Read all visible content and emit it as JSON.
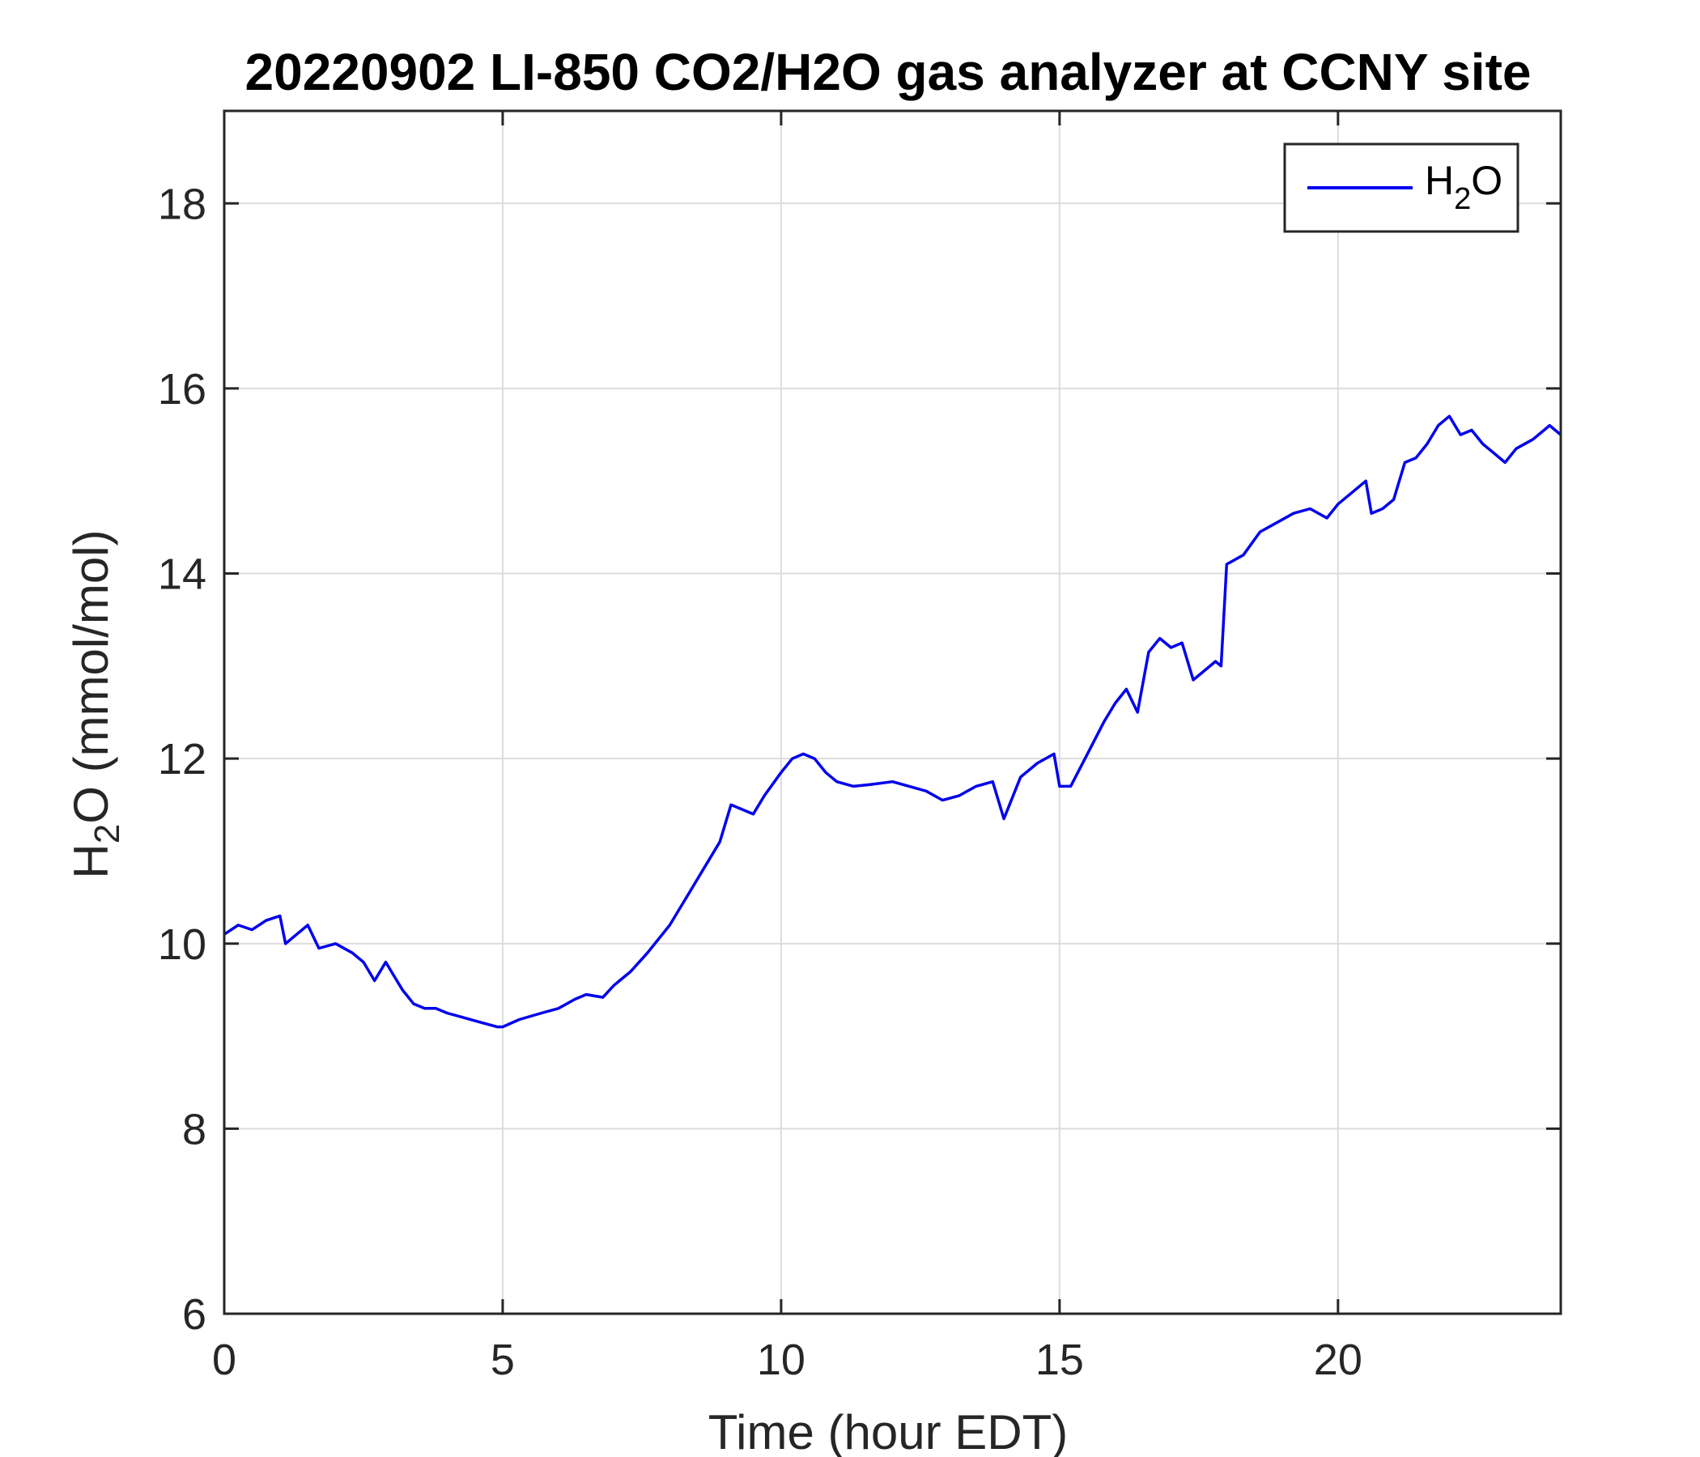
{
  "chart_data": {
    "type": "line",
    "title": "20220902 LI-850 CO2/H2O gas analyzer at CCNY site",
    "xlabel": "Time (hour EDT)",
    "ylabel": {
      "main": "H",
      "sub": "2",
      "rest": "O (mmol/mol)"
    },
    "xlim": [
      0,
      24
    ],
    "ylim": [
      6,
      19
    ],
    "xticks": [
      0,
      5,
      10,
      15,
      20
    ],
    "xtick_labels": [
      "0",
      "5",
      "10",
      "15",
      "20"
    ],
    "yticks": [
      6,
      8,
      10,
      12,
      14,
      16,
      18
    ],
    "ytick_labels": [
      "6",
      "8",
      "10",
      "12",
      "14",
      "16",
      "18"
    ],
    "grid": true,
    "legend_position": "top-right",
    "series": [
      {
        "name": {
          "main": "H",
          "sub": "2",
          "rest": "O"
        },
        "color": "#0000ee",
        "x": [
          0,
          0.25,
          0.5,
          0.75,
          1.0,
          1.1,
          1.5,
          1.7,
          2.0,
          2.3,
          2.5,
          2.7,
          2.9,
          3.0,
          3.2,
          3.4,
          3.6,
          3.8,
          4.0,
          4.3,
          4.6,
          4.9,
          5.0,
          5.3,
          5.7,
          6.0,
          6.3,
          6.5,
          6.8,
          7.0,
          7.3,
          7.6,
          8.0,
          8.3,
          8.6,
          8.9,
          9.1,
          9.3,
          9.5,
          9.7,
          10.0,
          10.2,
          10.4,
          10.6,
          10.8,
          11.0,
          11.3,
          11.6,
          12.0,
          12.3,
          12.6,
          12.9,
          13.2,
          13.5,
          13.8,
          14.0,
          14.1,
          14.3,
          14.6,
          14.9,
          15.0,
          15.2,
          15.5,
          15.8,
          16.0,
          16.2,
          16.4,
          16.6,
          16.8,
          17.0,
          17.2,
          17.4,
          17.6,
          17.8,
          17.9,
          18.0,
          18.3,
          18.6,
          18.9,
          19.2,
          19.5,
          19.8,
          20.0,
          20.3,
          20.5,
          20.6,
          20.8,
          21.0,
          21.2,
          21.4,
          21.6,
          21.8,
          22.0,
          22.2,
          22.4,
          22.6,
          22.8,
          23.0,
          23.2,
          23.5,
          23.7,
          23.8,
          24.0
        ],
        "y": [
          10.1,
          10.2,
          10.15,
          10.25,
          10.3,
          10.0,
          10.2,
          9.95,
          10.0,
          9.9,
          9.8,
          9.6,
          9.8,
          9.7,
          9.5,
          9.35,
          9.3,
          9.3,
          9.25,
          9.2,
          9.15,
          9.1,
          9.1,
          9.18,
          9.25,
          9.3,
          9.4,
          9.45,
          9.42,
          9.55,
          9.7,
          9.9,
          10.2,
          10.5,
          10.8,
          11.1,
          11.5,
          11.45,
          11.4,
          11.6,
          11.85,
          12.0,
          12.05,
          12.0,
          11.85,
          11.75,
          11.7,
          11.72,
          11.75,
          11.7,
          11.65,
          11.55,
          11.6,
          11.7,
          11.75,
          11.35,
          11.5,
          11.8,
          11.95,
          12.05,
          11.7,
          11.7,
          12.05,
          12.4,
          12.6,
          12.75,
          12.5,
          13.15,
          13.3,
          13.2,
          13.25,
          12.85,
          12.95,
          13.05,
          13.0,
          14.1,
          14.2,
          14.45,
          14.55,
          14.65,
          14.7,
          14.6,
          14.75,
          14.9,
          15.0,
          14.65,
          14.7,
          14.8,
          15.2,
          15.25,
          15.4,
          15.6,
          15.7,
          15.5,
          15.55,
          15.4,
          15.3,
          15.2,
          15.35,
          15.45,
          15.55,
          15.6,
          15.5
        ]
      }
    ]
  }
}
